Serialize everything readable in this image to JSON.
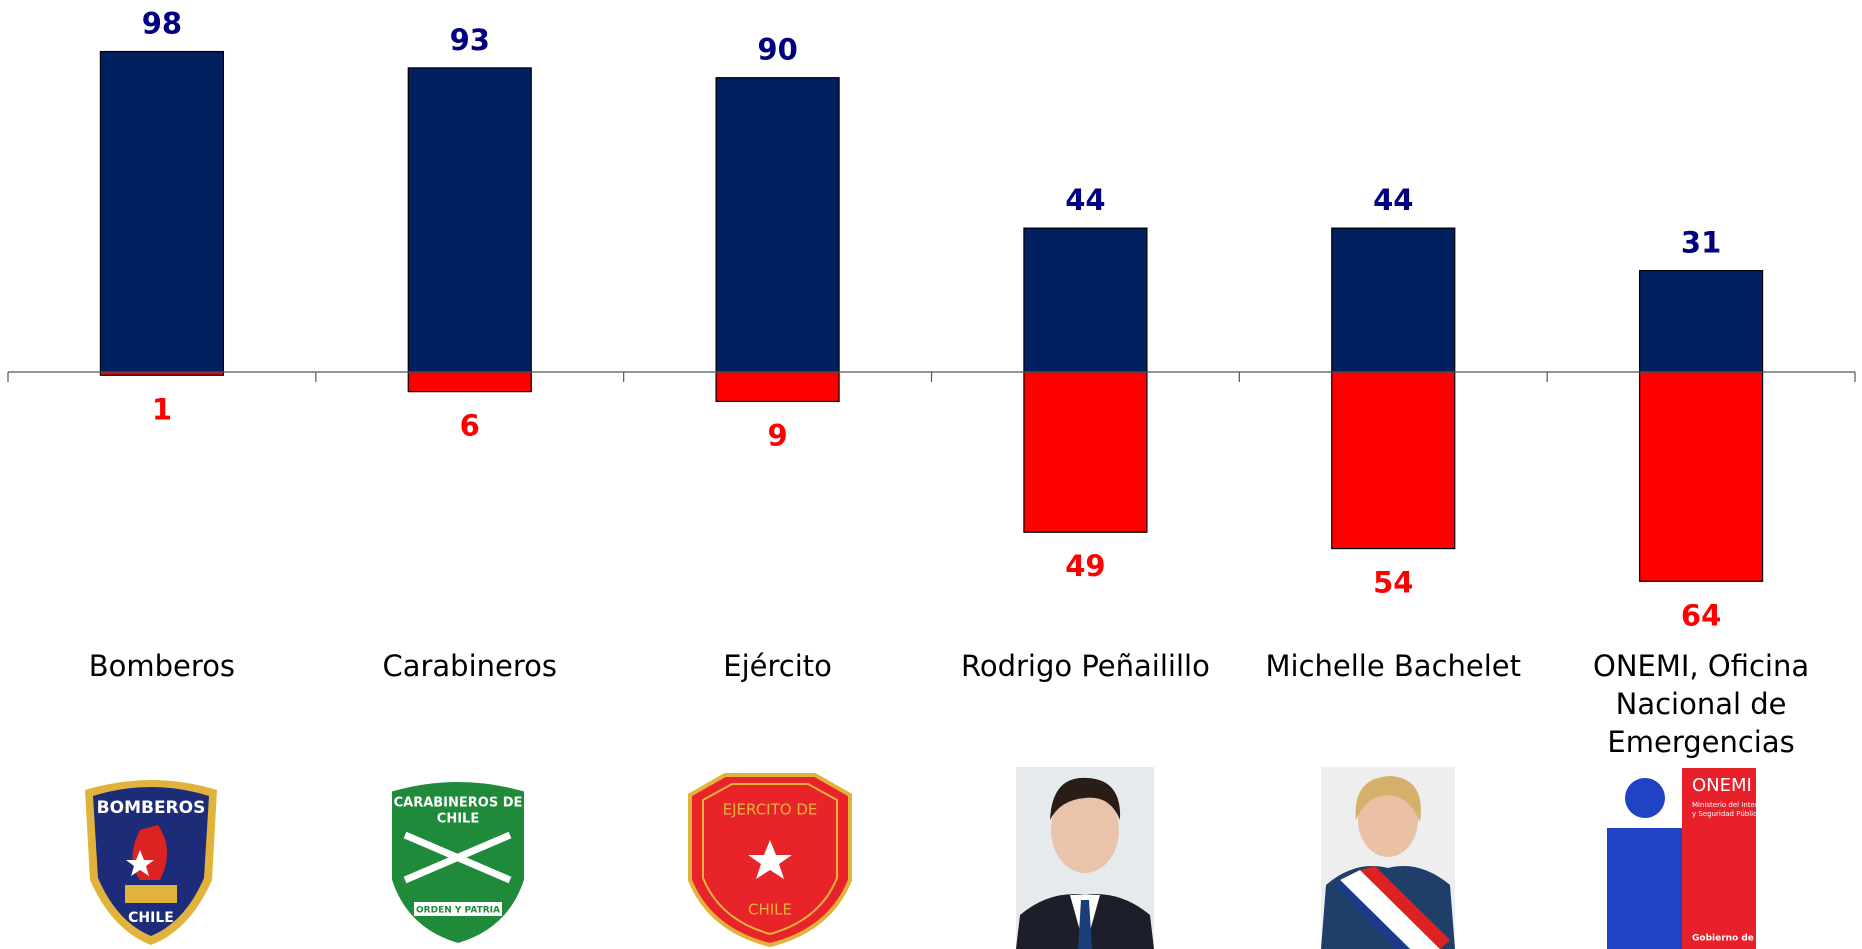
{
  "chart_data": {
    "type": "diverging-bar",
    "categories": [
      "Bomberos",
      "Carabineros",
      "Ejército",
      "Rodrigo Peñailillo",
      "Michelle Bachelet",
      "ONEMI, Oficina Nacional de Emergencias"
    ],
    "series": [
      {
        "color": "#002060",
        "label_color": "#000080",
        "values": [
          98,
          93,
          90,
          44,
          44,
          31
        ]
      },
      {
        "color": "#ff0000",
        "label_color": "#ff0000",
        "values": [
          -1,
          -6,
          -9,
          -49,
          -54,
          -64
        ],
        "value_labels": [
          "1",
          "6",
          "9",
          "49",
          "54",
          "64"
        ]
      }
    ],
    "ylim": [
      -100,
      100
    ],
    "grid": false
  },
  "logo_texts": {
    "bomberos": [
      "BOMBEROS",
      "CHILE"
    ],
    "carabineros": [
      "CARABINEROS DE",
      "CHILE",
      "ORDEN Y PATRIA"
    ],
    "ejercito": [
      "EJERCITO DE",
      "CHILE"
    ],
    "onemi": [
      "ONEMI",
      "Ministerio del Interior",
      "y Seguridad Pública",
      "Gobierno de Chile"
    ]
  }
}
